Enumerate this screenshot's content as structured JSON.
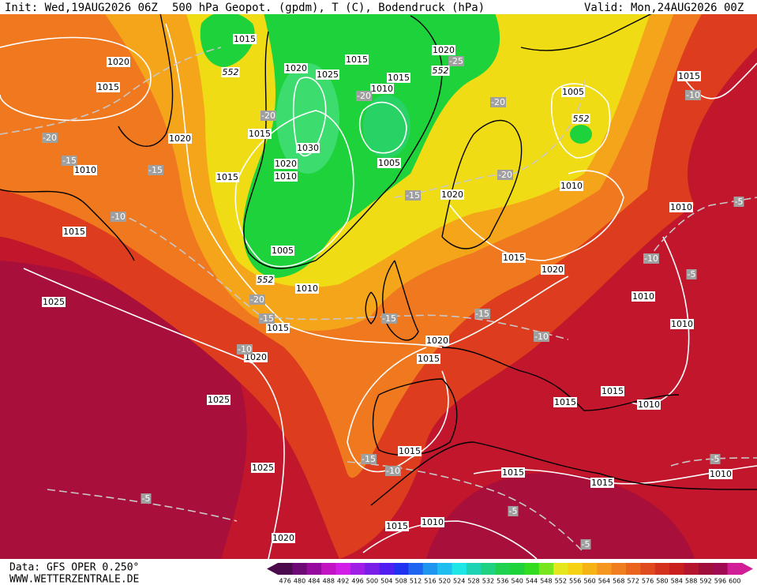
{
  "header": {
    "init": "Init: Wed,19AUG2026 06Z",
    "title": "500 hPa Geopot. (gpdm), T (C), Bodendruck (hPa)",
    "valid": "Valid: Mon,24AUG2026 00Z"
  },
  "map": {
    "pressure_labels": [
      1015,
      1020,
      1015,
      1020,
      1025,
      1015,
      1020,
      1015,
      1010,
      1005,
      1015,
      1020,
      1015,
      1030,
      1020,
      1010,
      1005,
      1015,
      1010,
      1020,
      1010,
      1010,
      1015,
      1005,
      1015,
      1020,
      1010,
      1010,
      1025,
      1015,
      1010,
      1020,
      1015,
      1020,
      1015,
      1015,
      1010,
      1025,
      1015,
      1025,
      1015,
      1015,
      1010,
      1015,
      1010,
      1020
    ],
    "temperature_labels": [
      -25,
      -20,
      -20,
      -10,
      -20,
      -20,
      -15,
      -15,
      -20,
      -15,
      -10,
      -5,
      -10,
      -5,
      -20,
      -15,
      -15,
      -15,
      -10,
      -10,
      -5,
      -15,
      -10,
      -5,
      -5,
      -5
    ],
    "geopotential_labels": [
      552,
      552,
      552,
      552
    ]
  },
  "colorbar": {
    "labels": [
      476,
      480,
      484,
      488,
      492,
      496,
      500,
      504,
      508,
      512,
      516,
      520,
      524,
      528,
      532,
      536,
      540,
      544,
      548,
      552,
      556,
      560,
      564,
      568,
      572,
      576,
      580,
      584,
      588,
      592,
      596,
      600
    ],
    "colors": [
      "#4b0a4b",
      "#6e0a78",
      "#960aa0",
      "#c314c3",
      "#d21ee6",
      "#a01ee6",
      "#781ee6",
      "#501ef0",
      "#1e32f0",
      "#1e64f0",
      "#1e96f0",
      "#1ebef0",
      "#1ee6e6",
      "#1ed2b4",
      "#1ed282",
      "#1ed250",
      "#1ed23c",
      "#32dc1e",
      "#78e61e",
      "#e6e61e",
      "#f5d214",
      "#f5b414",
      "#f5961e",
      "#f07d1e",
      "#eb641e",
      "#e04b1e",
      "#d2321e",
      "#c81e1e",
      "#b4142d",
      "#a00f3c",
      "#a00a50",
      "#d21e96"
    ]
  },
  "footer": {
    "data": "Data: GFS OPER 0.250°",
    "site": "WWW.WETTERZENTRALE.DE"
  }
}
